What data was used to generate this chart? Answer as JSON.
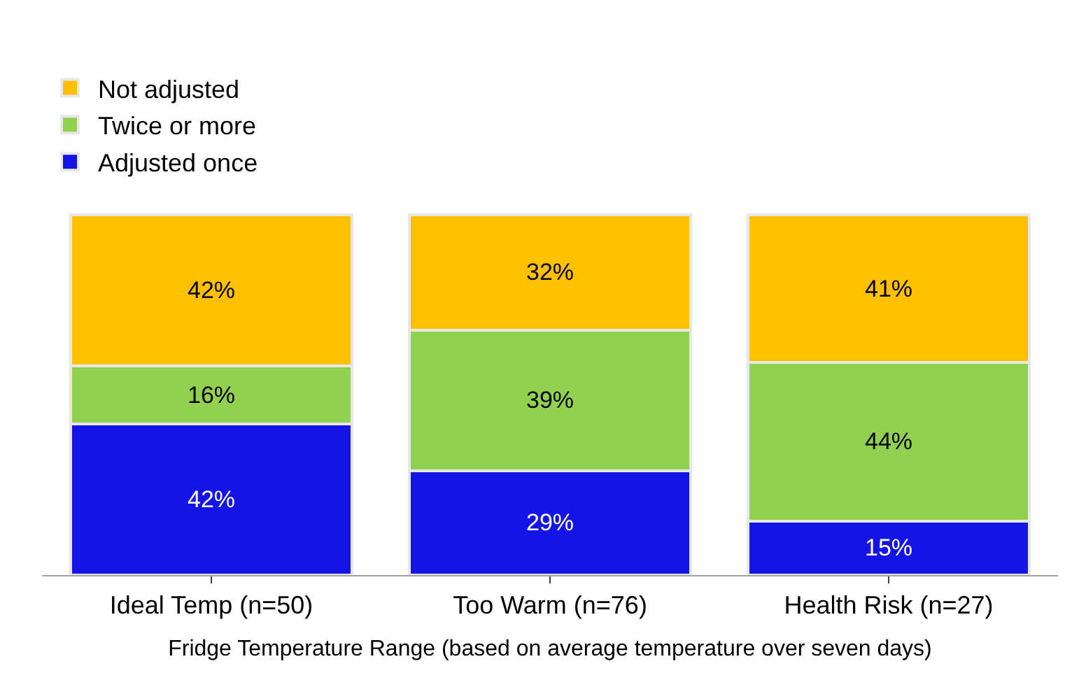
{
  "chart_data": {
    "type": "bar",
    "stacked": true,
    "legend": "top left",
    "tick_labels": "x",
    "xlabel": "Fridge Temperature Range (based on average temperature over seven days)",
    "categories": [
      "Ideal Temp (n=50)",
      "Too Warm (n=76)",
      "Health Risk (n=27)"
    ],
    "series": [
      {
        "name": "Adjusted once",
        "color": "#1414e6",
        "values": [
          42,
          29,
          15
        ],
        "value_labels": [
          "42%",
          "29%",
          "15%"
        ]
      },
      {
        "name": "Twice or more",
        "color": "#92d050",
        "values": [
          16,
          39,
          44
        ],
        "value_labels": [
          "16%",
          "39%",
          "44%"
        ]
      },
      {
        "name": "Not adjusted",
        "color": "#ffc000",
        "values": [
          42,
          32,
          41
        ],
        "value_labels": [
          "42%",
          "32%",
          "41%"
        ]
      }
    ]
  }
}
